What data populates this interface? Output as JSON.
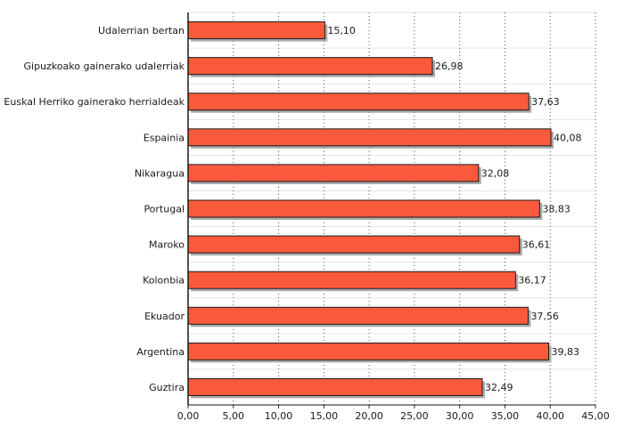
{
  "chart_data": {
    "type": "bar",
    "orientation": "horizontal",
    "categories": [
      "Udalerrian bertan",
      "Gipuzkoako gainerako udalerriak",
      "Euskal Herriko gainerako herrialdeak",
      "Espainia",
      "Nikaragua",
      "Portugal",
      "Maroko",
      "Kolonbia",
      "Ekuador",
      "Argentina",
      "Guztira"
    ],
    "values": [
      15.1,
      26.98,
      37.63,
      40.08,
      32.08,
      38.83,
      36.61,
      36.17,
      37.56,
      39.83,
      32.49
    ],
    "value_labels": [
      "15,10",
      "26,98",
      "37,63",
      "40,08",
      "32,08",
      "38,83",
      "36,61",
      "36,17",
      "37,56",
      "39,83",
      "32,49"
    ],
    "xlim": [
      0,
      45
    ],
    "x_ticks": [
      "0,00",
      "5,00",
      "10,00",
      "15,00",
      "20,00",
      "25,00",
      "30,00",
      "35,00",
      "40,00",
      "45,00"
    ],
    "grid": {
      "vertical": "dotted",
      "horizontal": "solid"
    },
    "bar_color": "#fa5a3c",
    "bar_edge_color": "#1a1a1a",
    "shadow_color": "#aaaaaa",
    "title": "",
    "xlabel": "",
    "ylabel": ""
  }
}
